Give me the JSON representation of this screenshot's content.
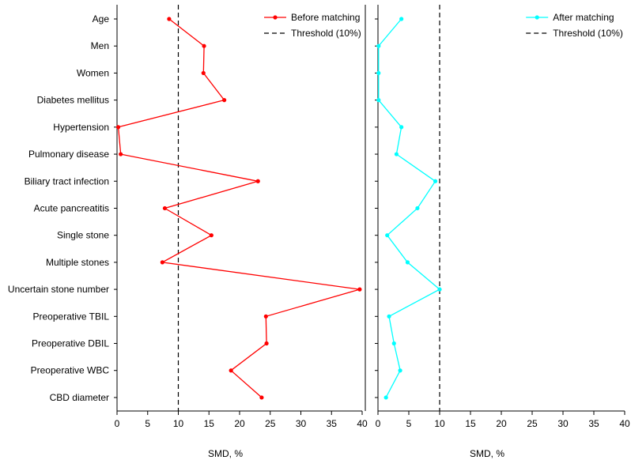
{
  "chart_data": {
    "type": "line",
    "orientation": "horizontal",
    "categories": [
      "Age",
      "Men",
      "Women",
      "Diabetes mellitus",
      "Hypertension",
      "Pulmonary disease",
      "Biliary tract infection",
      "Acute pancreatitis",
      "Single stone",
      "Multiple stones",
      "Uncertain stone number",
      "Preoperative TBIL",
      "Preoperative DBIL",
      "Preoperative WBC",
      "CBD diameter"
    ],
    "panels": [
      {
        "xlabel": "SMD, %",
        "xlim": [
          0,
          40
        ],
        "xticks": [
          0,
          5,
          10,
          15,
          20,
          25,
          30,
          35,
          40
        ],
        "threshold": 10,
        "legend": {
          "position": "top-right",
          "series_label": "Before matching",
          "threshold_label": "Threshold (10%)"
        },
        "series": [
          {
            "name": "Before matching",
            "color": "#ff0000",
            "values": [
              8.5,
              14.2,
              14.1,
              17.5,
              0.2,
              0.6,
              23.0,
              7.8,
              15.4,
              7.4,
              39.6,
              24.3,
              24.4,
              18.6,
              23.6
            ]
          }
        ]
      },
      {
        "xlabel": "SMD, %",
        "xlim": [
          0,
          40
        ],
        "xticks": [
          0,
          5,
          10,
          15,
          20,
          25,
          30,
          35,
          40
        ],
        "threshold": 10,
        "legend": {
          "position": "top-right",
          "series_label": "After matching",
          "threshold_label": "Threshold (10%)"
        },
        "series": [
          {
            "name": "After matching",
            "color": "#00ffff",
            "values": [
              3.8,
              0.1,
              0.1,
              0.1,
              3.8,
              3.0,
              9.3,
              6.4,
              1.5,
              4.8,
              10.0,
              1.8,
              2.6,
              3.6,
              1.3
            ]
          }
        ]
      }
    ]
  }
}
